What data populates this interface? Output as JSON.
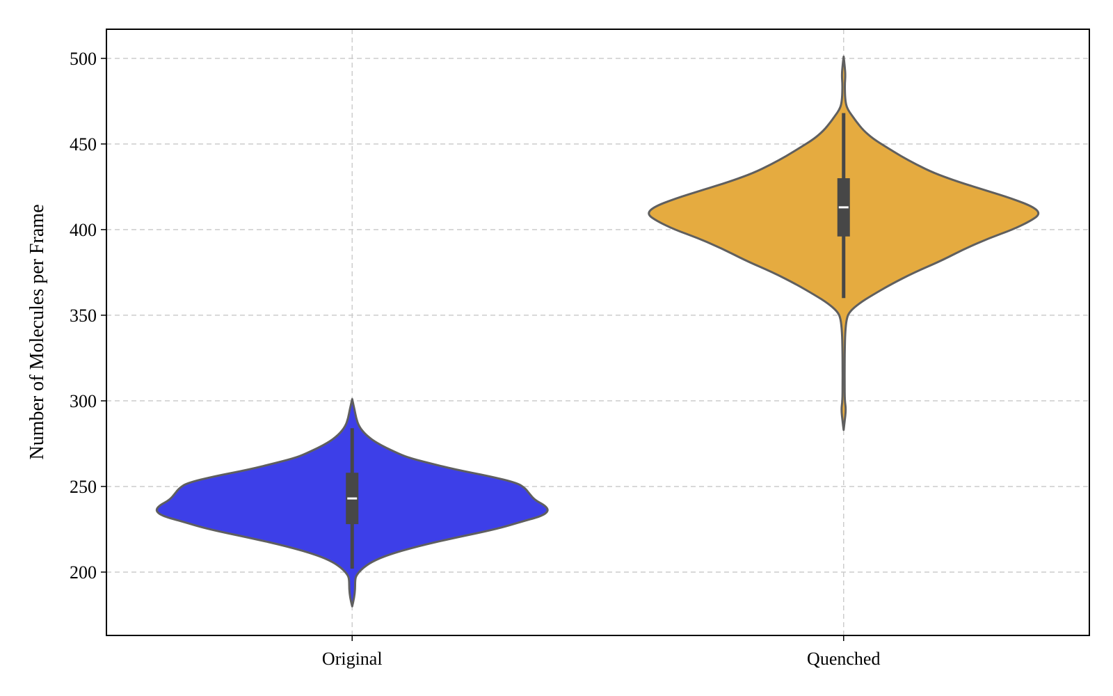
{
  "chart_data": {
    "type": "violin",
    "title": "",
    "xlabel": "",
    "ylabel": "Number of Molecules per Frame",
    "ylim": [
      163,
      517
    ],
    "yticks": [
      200,
      250,
      300,
      350,
      400,
      450,
      500
    ],
    "grid": true,
    "categories": [
      "Original",
      "Quenched"
    ],
    "series": [
      {
        "category": "Original",
        "color": "#3d3fe8",
        "min": 180,
        "max": 301,
        "whisker_low": 202,
        "whisker_high": 284,
        "q1": 228,
        "median": 243,
        "q3": 258,
        "density_profile": [
          [
            180,
            0.0
          ],
          [
            185,
            0.01
          ],
          [
            190,
            0.015
          ],
          [
            195,
            0.015
          ],
          [
            198,
            0.02
          ],
          [
            202,
            0.05
          ],
          [
            206,
            0.1
          ],
          [
            210,
            0.18
          ],
          [
            215,
            0.33
          ],
          [
            220,
            0.52
          ],
          [
            225,
            0.73
          ],
          [
            230,
            0.88
          ],
          [
            233,
            0.97
          ],
          [
            236,
            1.0
          ],
          [
            239,
            0.98
          ],
          [
            242,
            0.93
          ],
          [
            246,
            0.9
          ],
          [
            249,
            0.88
          ],
          [
            252,
            0.84
          ],
          [
            256,
            0.7
          ],
          [
            260,
            0.52
          ],
          [
            264,
            0.38
          ],
          [
            267,
            0.28
          ],
          [
            270,
            0.22
          ],
          [
            275,
            0.13
          ],
          [
            280,
            0.07
          ],
          [
            285,
            0.035
          ],
          [
            290,
            0.02
          ],
          [
            295,
            0.012
          ],
          [
            301,
            0.0
          ]
        ]
      },
      {
        "category": "Quenched",
        "color": "#e5ab40",
        "min": 283,
        "max": 501,
        "whisker_low": 360,
        "whisker_high": 468,
        "q1": 396,
        "median": 413,
        "q3": 430,
        "density_profile": [
          [
            283,
            0.0
          ],
          [
            288,
            0.005
          ],
          [
            295,
            0.012
          ],
          [
            300,
            0.006
          ],
          [
            310,
            0.005
          ],
          [
            320,
            0.005
          ],
          [
            330,
            0.006
          ],
          [
            340,
            0.008
          ],
          [
            348,
            0.015
          ],
          [
            352,
            0.03
          ],
          [
            357,
            0.08
          ],
          [
            362,
            0.15
          ],
          [
            368,
            0.24
          ],
          [
            375,
            0.36
          ],
          [
            382,
            0.5
          ],
          [
            389,
            0.62
          ],
          [
            395,
            0.74
          ],
          [
            400,
            0.86
          ],
          [
            405,
            0.95
          ],
          [
            409,
            1.0
          ],
          [
            413,
            0.97
          ],
          [
            418,
            0.86
          ],
          [
            423,
            0.72
          ],
          [
            428,
            0.58
          ],
          [
            433,
            0.46
          ],
          [
            438,
            0.37
          ],
          [
            443,
            0.29
          ],
          [
            448,
            0.22
          ],
          [
            453,
            0.15
          ],
          [
            458,
            0.1
          ],
          [
            463,
            0.065
          ],
          [
            467,
            0.04
          ],
          [
            470,
            0.022
          ],
          [
            473,
            0.012
          ],
          [
            478,
            0.007
          ],
          [
            485,
            0.006
          ],
          [
            490,
            0.009
          ],
          [
            495,
            0.006
          ],
          [
            501,
            0.0
          ]
        ]
      }
    ]
  }
}
